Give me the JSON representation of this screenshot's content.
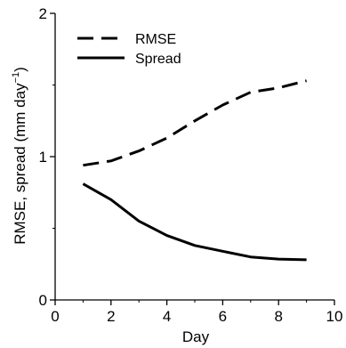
{
  "chart_data": {
    "type": "line",
    "title": "",
    "xlabel": "Day",
    "ylabel": "RMSE, spread (mm day",
    "ylabel_sup": "−1",
    "ylabel_close": ")",
    "xlim": [
      0,
      10
    ],
    "ylim": [
      0,
      2
    ],
    "xticks": [
      0,
      2,
      4,
      6,
      8,
      10
    ],
    "yticks": [
      0,
      1,
      2
    ],
    "x": [
      1,
      2,
      3,
      4,
      5,
      6,
      7,
      8,
      9
    ],
    "series": [
      {
        "name": "RMSE",
        "style": "dashed",
        "color": "#000000",
        "values": [
          0.94,
          0.97,
          1.04,
          1.13,
          1.25,
          1.36,
          1.45,
          1.48,
          1.53
        ]
      },
      {
        "name": "Spread",
        "style": "solid",
        "color": "#000000",
        "values": [
          0.81,
          0.7,
          0.55,
          0.45,
          0.38,
          0.34,
          0.3,
          0.285,
          0.28
        ]
      }
    ],
    "grid": false,
    "legend_position": "top-left"
  }
}
